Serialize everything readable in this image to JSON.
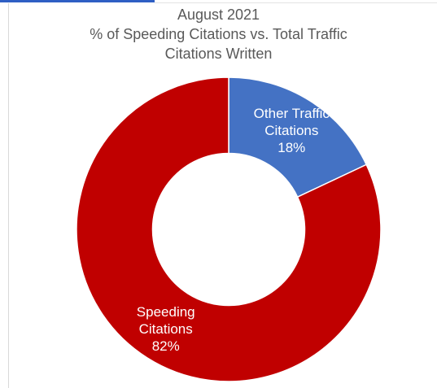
{
  "chart_data": {
    "type": "pie",
    "title_lines": [
      "August 2021",
      "% of Speeding Citations vs. Total Traffic",
      "Citations Written"
    ],
    "hole": 0.5,
    "slices": [
      {
        "name": "Other Traffic Citations",
        "label_lines": [
          "Other Traffic",
          "Citations",
          "18%"
        ],
        "value": 18,
        "color": "#4472C4"
      },
      {
        "name": "Speeding Citations",
        "label_lines": [
          "Speeding",
          "Citations",
          "82%"
        ],
        "value": 82,
        "color": "#C00000"
      }
    ]
  }
}
